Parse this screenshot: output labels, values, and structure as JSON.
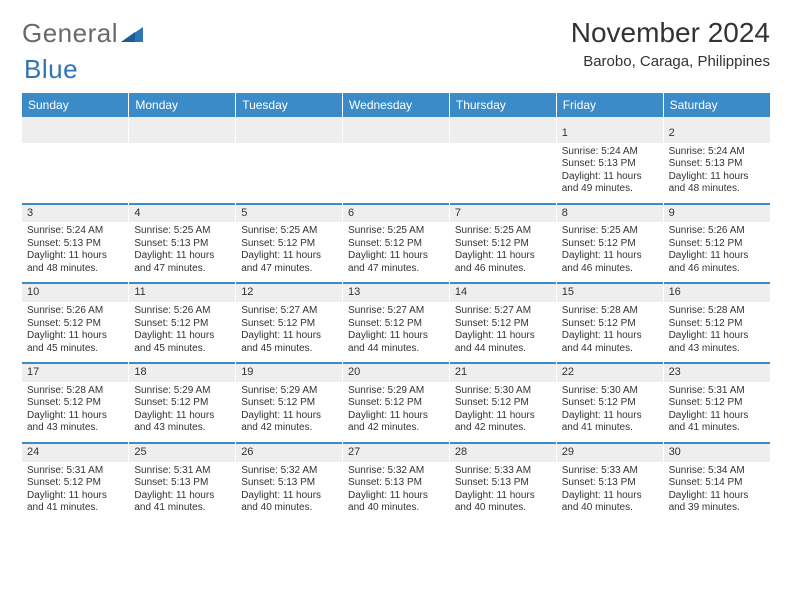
{
  "brand": {
    "part1": "General",
    "part2": "Blue",
    "tri_color": "#2e75b6"
  },
  "title": "November 2024",
  "location": "Barobo, Caraga, Philippines",
  "colors": {
    "header_bg": "#3b8bc9",
    "header_fg": "#ffffff",
    "daynum_bg": "#eeeeee",
    "sep": "#3b8bc9",
    "text": "#333333",
    "page_bg": "#ffffff"
  },
  "weekdays": [
    "Sunday",
    "Monday",
    "Tuesday",
    "Wednesday",
    "Thursday",
    "Friday",
    "Saturday"
  ],
  "weeks": [
    [
      null,
      null,
      null,
      null,
      null,
      {
        "n": "1",
        "sr": "5:24 AM",
        "ss": "5:13 PM",
        "dl": "11 hours and 49 minutes."
      },
      {
        "n": "2",
        "sr": "5:24 AM",
        "ss": "5:13 PM",
        "dl": "11 hours and 48 minutes."
      }
    ],
    [
      {
        "n": "3",
        "sr": "5:24 AM",
        "ss": "5:13 PM",
        "dl": "11 hours and 48 minutes."
      },
      {
        "n": "4",
        "sr": "5:25 AM",
        "ss": "5:13 PM",
        "dl": "11 hours and 47 minutes."
      },
      {
        "n": "5",
        "sr": "5:25 AM",
        "ss": "5:12 PM",
        "dl": "11 hours and 47 minutes."
      },
      {
        "n": "6",
        "sr": "5:25 AM",
        "ss": "5:12 PM",
        "dl": "11 hours and 47 minutes."
      },
      {
        "n": "7",
        "sr": "5:25 AM",
        "ss": "5:12 PM",
        "dl": "11 hours and 46 minutes."
      },
      {
        "n": "8",
        "sr": "5:25 AM",
        "ss": "5:12 PM",
        "dl": "11 hours and 46 minutes."
      },
      {
        "n": "9",
        "sr": "5:26 AM",
        "ss": "5:12 PM",
        "dl": "11 hours and 46 minutes."
      }
    ],
    [
      {
        "n": "10",
        "sr": "5:26 AM",
        "ss": "5:12 PM",
        "dl": "11 hours and 45 minutes."
      },
      {
        "n": "11",
        "sr": "5:26 AM",
        "ss": "5:12 PM",
        "dl": "11 hours and 45 minutes."
      },
      {
        "n": "12",
        "sr": "5:27 AM",
        "ss": "5:12 PM",
        "dl": "11 hours and 45 minutes."
      },
      {
        "n": "13",
        "sr": "5:27 AM",
        "ss": "5:12 PM",
        "dl": "11 hours and 44 minutes."
      },
      {
        "n": "14",
        "sr": "5:27 AM",
        "ss": "5:12 PM",
        "dl": "11 hours and 44 minutes."
      },
      {
        "n": "15",
        "sr": "5:28 AM",
        "ss": "5:12 PM",
        "dl": "11 hours and 44 minutes."
      },
      {
        "n": "16",
        "sr": "5:28 AM",
        "ss": "5:12 PM",
        "dl": "11 hours and 43 minutes."
      }
    ],
    [
      {
        "n": "17",
        "sr": "5:28 AM",
        "ss": "5:12 PM",
        "dl": "11 hours and 43 minutes."
      },
      {
        "n": "18",
        "sr": "5:29 AM",
        "ss": "5:12 PM",
        "dl": "11 hours and 43 minutes."
      },
      {
        "n": "19",
        "sr": "5:29 AM",
        "ss": "5:12 PM",
        "dl": "11 hours and 42 minutes."
      },
      {
        "n": "20",
        "sr": "5:29 AM",
        "ss": "5:12 PM",
        "dl": "11 hours and 42 minutes."
      },
      {
        "n": "21",
        "sr": "5:30 AM",
        "ss": "5:12 PM",
        "dl": "11 hours and 42 minutes."
      },
      {
        "n": "22",
        "sr": "5:30 AM",
        "ss": "5:12 PM",
        "dl": "11 hours and 41 minutes."
      },
      {
        "n": "23",
        "sr": "5:31 AM",
        "ss": "5:12 PM",
        "dl": "11 hours and 41 minutes."
      }
    ],
    [
      {
        "n": "24",
        "sr": "5:31 AM",
        "ss": "5:12 PM",
        "dl": "11 hours and 41 minutes."
      },
      {
        "n": "25",
        "sr": "5:31 AM",
        "ss": "5:13 PM",
        "dl": "11 hours and 41 minutes."
      },
      {
        "n": "26",
        "sr": "5:32 AM",
        "ss": "5:13 PM",
        "dl": "11 hours and 40 minutes."
      },
      {
        "n": "27",
        "sr": "5:32 AM",
        "ss": "5:13 PM",
        "dl": "11 hours and 40 minutes."
      },
      {
        "n": "28",
        "sr": "5:33 AM",
        "ss": "5:13 PM",
        "dl": "11 hours and 40 minutes."
      },
      {
        "n": "29",
        "sr": "5:33 AM",
        "ss": "5:13 PM",
        "dl": "11 hours and 40 minutes."
      },
      {
        "n": "30",
        "sr": "5:34 AM",
        "ss": "5:14 PM",
        "dl": "11 hours and 39 minutes."
      }
    ]
  ],
  "labels": {
    "sunrise": "Sunrise:",
    "sunset": "Sunset:",
    "daylight": "Daylight:"
  }
}
